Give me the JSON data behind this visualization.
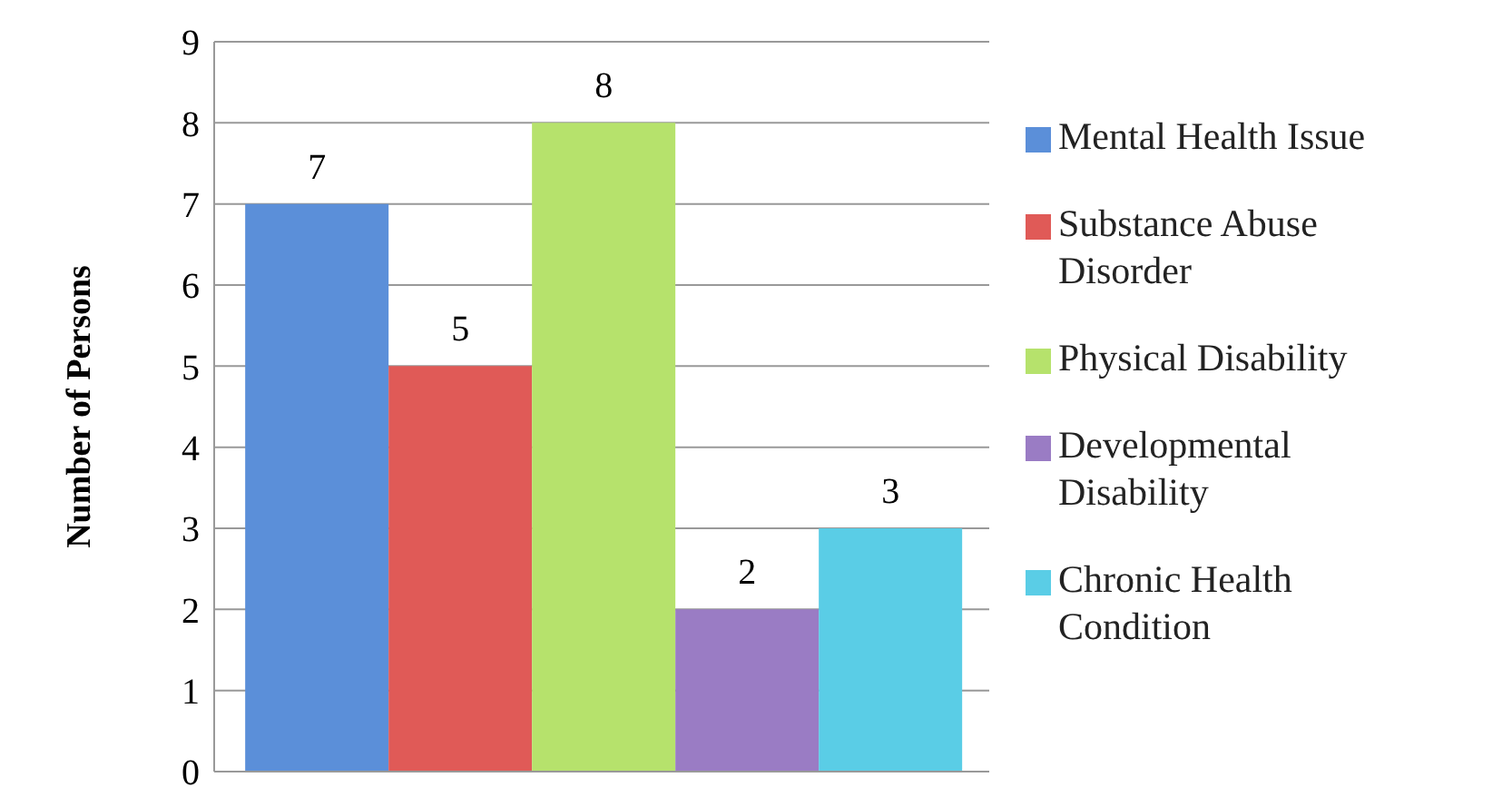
{
  "chart_data": {
    "type": "bar",
    "ylabel": "Number of Persons",
    "categories": [
      null
    ],
    "series": [
      {
        "name": "Mental Health Issue",
        "color": "#5b8fd9",
        "values": [
          7
        ]
      },
      {
        "name": "Substance Abuse Disorder",
        "color": "#e05a57",
        "values": [
          5
        ]
      },
      {
        "name": "Physical Disability",
        "color": "#b6e26c",
        "values": [
          8
        ]
      },
      {
        "name": "Developmental Disability",
        "color": "#9a7cc4",
        "values": [
          2
        ]
      },
      {
        "name": "Chronic Health Condition",
        "color": "#5acde6",
        "values": [
          3
        ]
      }
    ],
    "ylim": [
      0,
      9
    ],
    "yticks": [
      0,
      1,
      2,
      3,
      4,
      5,
      6,
      7,
      8,
      9
    ],
    "grid": "y",
    "legend": "right",
    "data_labels": true
  }
}
